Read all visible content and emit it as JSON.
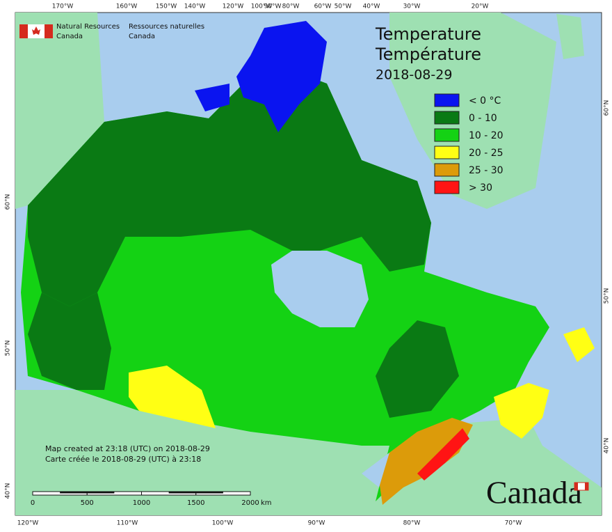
{
  "header": {
    "agency_en": [
      "Natural Resources",
      "Canada"
    ],
    "agency_fr": [
      "Ressources naturelles",
      "Canada"
    ]
  },
  "title": {
    "en": "Temperature",
    "fr": "Température",
    "date": "2018-08-29"
  },
  "legend": [
    {
      "label": "< 0 °C",
      "color": "#0a14f0"
    },
    {
      "label": "0 - 10",
      "color": "#0a7a14"
    },
    {
      "label": "10 - 20",
      "color": "#14d214"
    },
    {
      "label": "20 - 25",
      "color": "#ffff14"
    },
    {
      "label": "25 - 30",
      "color": "#dc9b0a"
    },
    {
      "label": "> 30",
      "color": "#ff1414"
    }
  ],
  "graticule": {
    "top": [
      "170°W",
      "160°W",
      "150°W",
      "140°W",
      "120°W",
      "100°W",
      "90°W",
      "80°W",
      "60°W",
      "50°W",
      "40°W",
      "30°W",
      "20°W"
    ],
    "bottom": [
      "120°W",
      "110°W",
      "100°W",
      "90°W",
      "80°W",
      "70°W"
    ],
    "left": [
      "60°N",
      "50°N",
      "40°N"
    ],
    "right": [
      "60°N",
      "50°N",
      "40°N"
    ]
  },
  "notes": [
    "Map created at 23:18 (UTC) on 2018-08-29",
    "Carte créée le 2018-08-29 (UTC) à 23:18"
  ],
  "scale": {
    "labels": [
      "0",
      "500",
      "1000",
      "1500",
      "2000"
    ],
    "unit": "km"
  },
  "wordmark": "Canada"
}
